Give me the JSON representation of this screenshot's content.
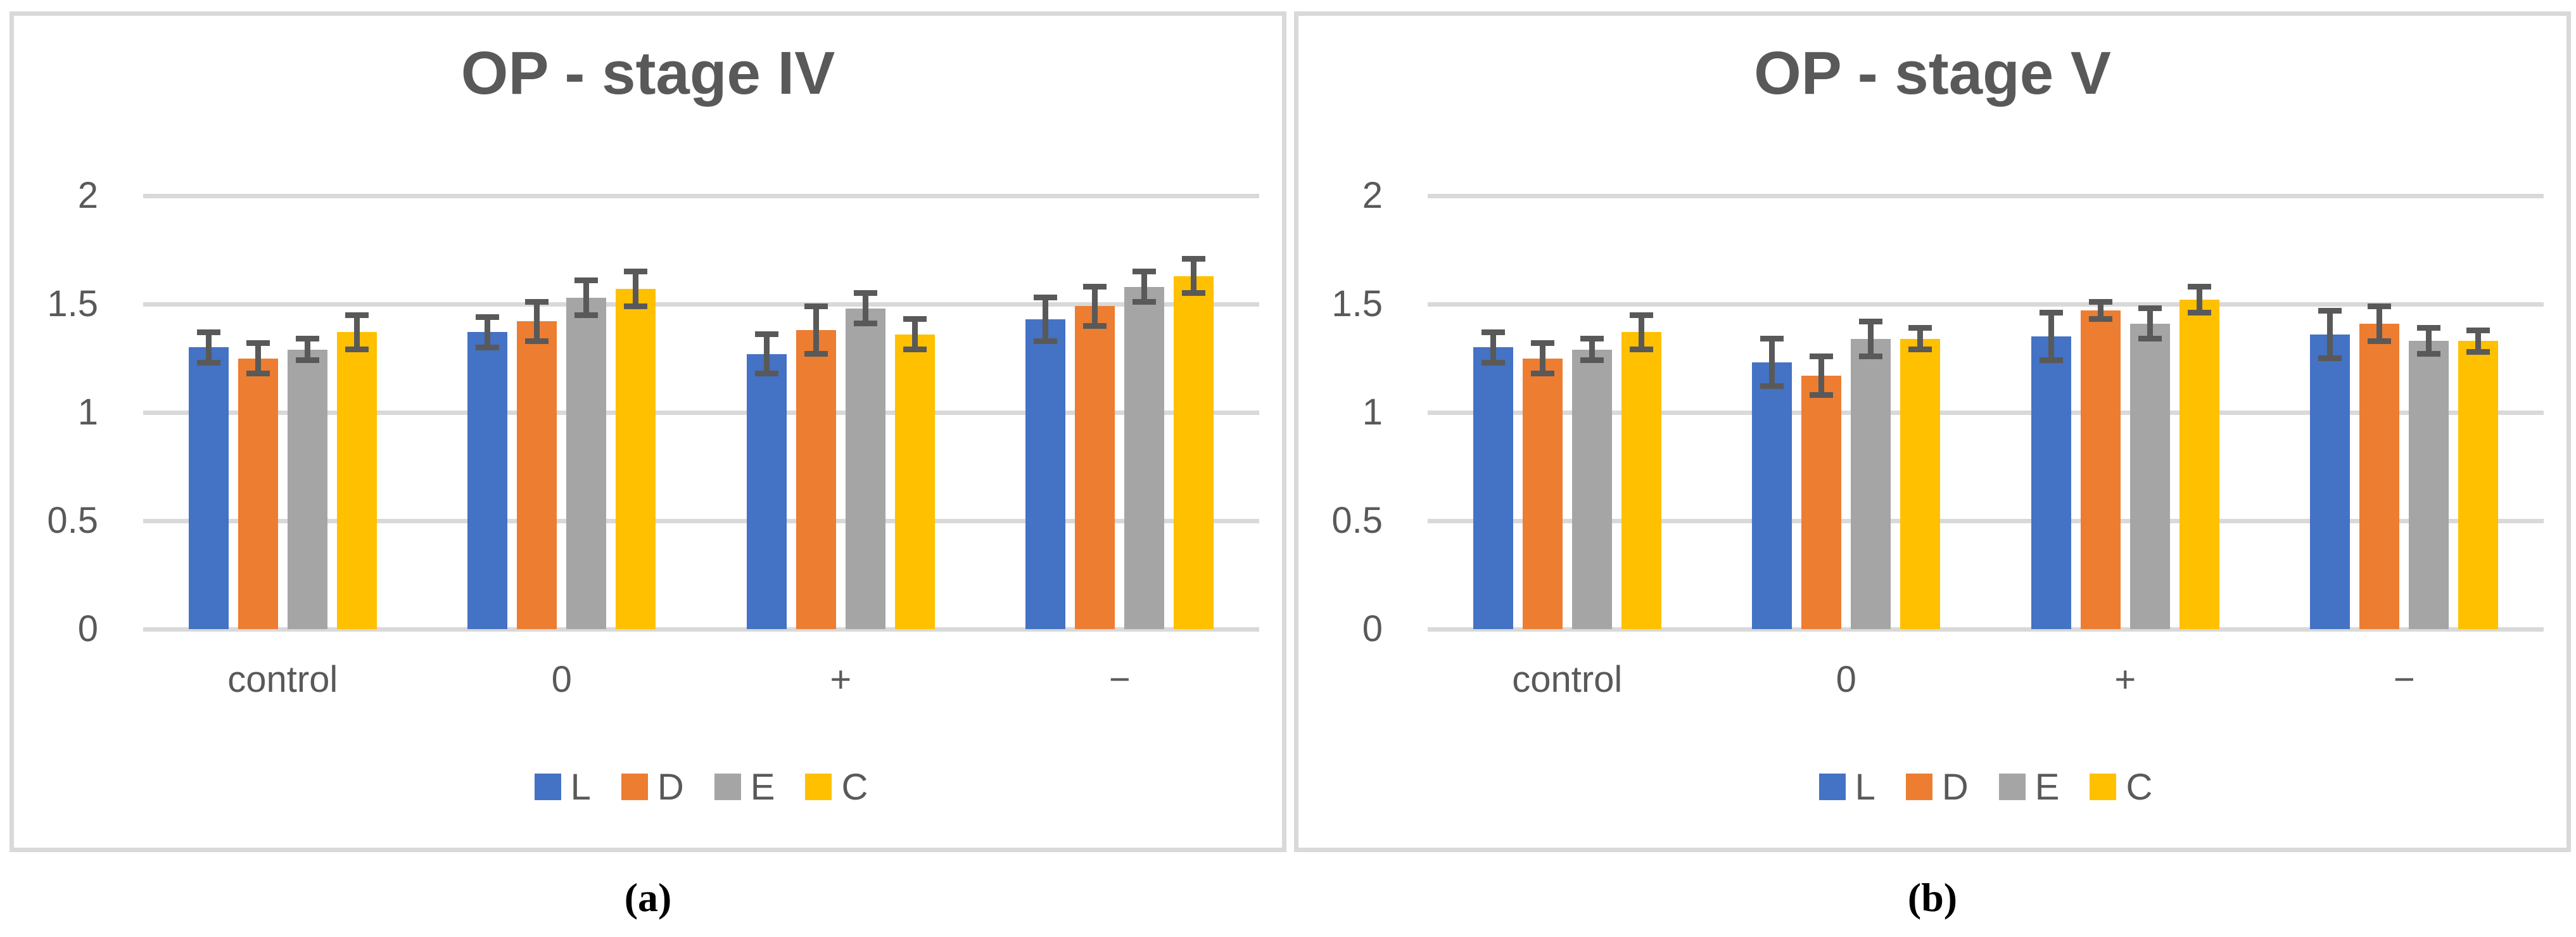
{
  "captions": {
    "a": "(a)",
    "b": "(b)"
  },
  "colors": {
    "text": "#595959",
    "gridline": "#D9D9D9",
    "border": "#D9D9D9",
    "error": "#595959",
    "series": {
      "L": "#4472C4",
      "D": "#ED7D31",
      "E": "#A5A5A5",
      "C": "#FFC000"
    }
  },
  "legend": [
    "L",
    "D",
    "E",
    "C"
  ],
  "chart_data": [
    {
      "type": "bar",
      "title": "OP - stage IV",
      "xlabel": "",
      "ylabel": "",
      "ylim": [
        0,
        2
      ],
      "grid": true,
      "legend_position": "bottom",
      "yticks": [
        {
          "v": 0,
          "label": "0"
        },
        {
          "v": 0.5,
          "label": "0.5"
        },
        {
          "v": 1,
          "label": "1"
        },
        {
          "v": 1.5,
          "label": "1.5"
        },
        {
          "v": 2,
          "label": "2"
        }
      ],
      "categories": [
        "control",
        "0",
        "+",
        "−"
      ],
      "series": [
        {
          "name": "L",
          "values": [
            1.3,
            1.37,
            1.27,
            1.43
          ],
          "errors": [
            0.07,
            0.07,
            0.09,
            0.1
          ]
        },
        {
          "name": "D",
          "values": [
            1.25,
            1.42,
            1.38,
            1.49
          ],
          "errors": [
            0.07,
            0.09,
            0.11,
            0.09
          ]
        },
        {
          "name": "E",
          "values": [
            1.29,
            1.53,
            1.48,
            1.58
          ],
          "errors": [
            0.05,
            0.08,
            0.07,
            0.07
          ]
        },
        {
          "name": "C",
          "values": [
            1.37,
            1.57,
            1.36,
            1.63
          ],
          "errors": [
            0.08,
            0.08,
            0.07,
            0.08
          ]
        }
      ]
    },
    {
      "type": "bar",
      "title": "OP - stage V",
      "xlabel": "",
      "ylabel": "",
      "ylim": [
        0,
        2
      ],
      "grid": true,
      "legend_position": "bottom",
      "yticks": [
        {
          "v": 0,
          "label": "0"
        },
        {
          "v": 0.5,
          "label": "0.5"
        },
        {
          "v": 1,
          "label": "1"
        },
        {
          "v": 1.5,
          "label": "1.5"
        },
        {
          "v": 2,
          "label": "2"
        }
      ],
      "categories": [
        "control",
        "0",
        "+",
        "−"
      ],
      "series": [
        {
          "name": "L",
          "values": [
            1.3,
            1.23,
            1.35,
            1.36
          ],
          "errors": [
            0.07,
            0.11,
            0.11,
            0.11
          ]
        },
        {
          "name": "D",
          "values": [
            1.25,
            1.17,
            1.47,
            1.41
          ],
          "errors": [
            0.07,
            0.09,
            0.04,
            0.08
          ]
        },
        {
          "name": "E",
          "values": [
            1.29,
            1.34,
            1.41,
            1.33
          ],
          "errors": [
            0.05,
            0.08,
            0.07,
            0.06
          ]
        },
        {
          "name": "C",
          "values": [
            1.37,
            1.34,
            1.52,
            1.33
          ],
          "errors": [
            0.08,
            0.05,
            0.06,
            0.05
          ]
        }
      ]
    }
  ]
}
